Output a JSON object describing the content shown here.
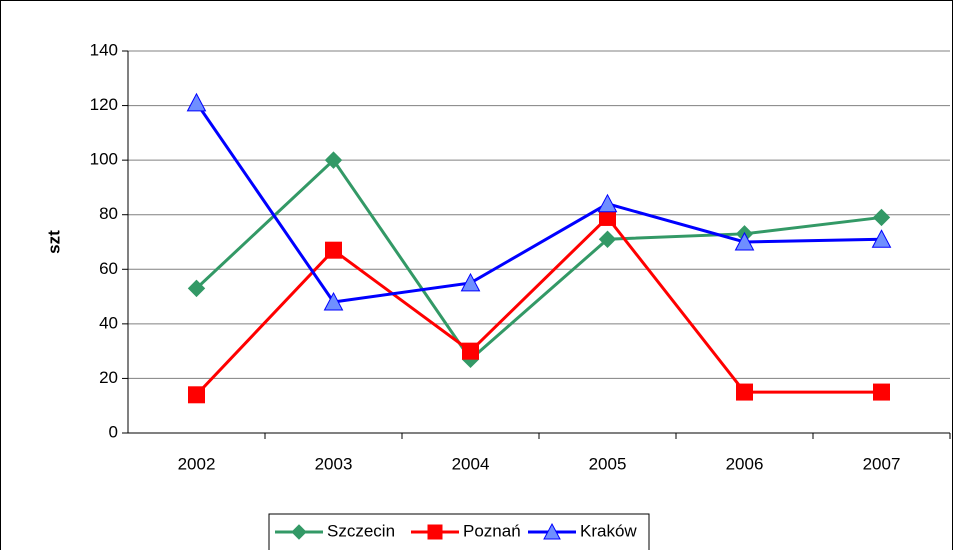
{
  "chart_data": {
    "type": "line",
    "y_label": "szt",
    "categories": [
      "2002",
      "2003",
      "2004",
      "2005",
      "2006",
      "2007"
    ],
    "series": [
      {
        "name": "Szczecin",
        "color": "#339966",
        "marker": "diamond",
        "values": [
          53,
          100,
          27,
          71,
          73,
          79
        ]
      },
      {
        "name": "Poznań",
        "color": "#ff0000",
        "marker": "square",
        "values": [
          14,
          67,
          30,
          79,
          15,
          15
        ]
      },
      {
        "name": "Kraków",
        "color": "#0000ff",
        "marker": "triangle",
        "values": [
          121,
          48,
          55,
          84,
          70,
          71
        ]
      }
    ],
    "ylim": [
      0,
      140
    ],
    "yticks": [
      0,
      20,
      40,
      60,
      80,
      100,
      120,
      140
    ],
    "grid": true,
    "legend": "bottom"
  }
}
